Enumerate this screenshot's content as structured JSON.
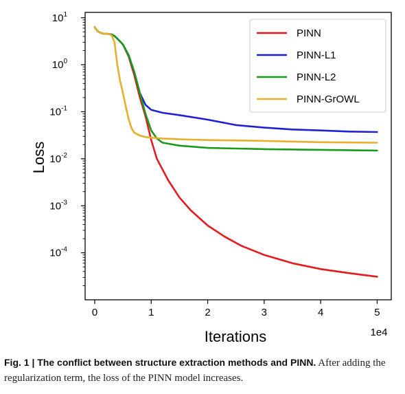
{
  "chart_data": {
    "type": "line",
    "title": "",
    "xlabel": "Iterations",
    "ylabel": "Loss",
    "x_multiplier_label": "1e4",
    "x_ticks": [
      "0",
      "1",
      "2",
      "3",
      "4",
      "5"
    ],
    "x_tick_values": [
      0,
      1,
      2,
      3,
      4,
      5
    ],
    "y_scale": "log",
    "y_ticks": [
      {
        "base": "10",
        "exp": "1",
        "value": 10
      },
      {
        "base": "10",
        "exp": "0",
        "value": 1
      },
      {
        "base": "10",
        "exp": "-1",
        "value": 0.1
      },
      {
        "base": "10",
        "exp": "-2",
        "value": 0.01
      },
      {
        "base": "10",
        "exp": "-3",
        "value": 0.001
      },
      {
        "base": "10",
        "exp": "-4",
        "value": 0.0001
      }
    ],
    "xlim": [
      -0.17,
      5.25
    ],
    "ylim": [
      1e-05,
      13
    ],
    "grid": false,
    "legend_position": "top-right",
    "series": [
      {
        "name": "PINN",
        "color": "#e41a1c",
        "x": [
          0,
          0.05,
          0.1,
          0.15,
          0.2,
          0.25,
          0.3,
          0.35,
          0.4,
          0.5,
          0.6,
          0.7,
          0.8,
          0.9,
          1.0,
          1.1,
          1.3,
          1.5,
          1.7,
          2.0,
          2.3,
          2.6,
          3.0,
          3.5,
          4.0,
          4.5,
          5.0
        ],
        "y": [
          6.3,
          5.2,
          4.8,
          4.6,
          4.6,
          4.5,
          4.4,
          4.1,
          3.6,
          2.7,
          1.5,
          0.6,
          0.2,
          0.08,
          0.025,
          0.01,
          0.0035,
          0.0015,
          0.0008,
          0.00038,
          0.00022,
          0.00014,
          9e-05,
          6e-05,
          4.5e-05,
          3.7e-05,
          3.1e-05
        ]
      },
      {
        "name": "PINN-L1",
        "color": "#1f1fd6",
        "x": [
          0,
          0.05,
          0.1,
          0.15,
          0.2,
          0.25,
          0.3,
          0.35,
          0.4,
          0.5,
          0.6,
          0.7,
          0.8,
          0.9,
          1.0,
          1.2,
          1.5,
          2.0,
          2.5,
          3.0,
          3.5,
          4.0,
          4.5,
          5.0
        ],
        "y": [
          6.3,
          5.2,
          4.8,
          4.6,
          4.6,
          4.5,
          4.4,
          4.1,
          3.6,
          2.7,
          1.6,
          0.7,
          0.25,
          0.14,
          0.11,
          0.095,
          0.085,
          0.068,
          0.052,
          0.046,
          0.042,
          0.04,
          0.038,
          0.037
        ]
      },
      {
        "name": "PINN-L2",
        "color": "#1a9a1a",
        "x": [
          0,
          0.05,
          0.1,
          0.15,
          0.2,
          0.25,
          0.3,
          0.35,
          0.4,
          0.5,
          0.6,
          0.7,
          0.8,
          0.9,
          1.0,
          1.1,
          1.2,
          1.5,
          2.0,
          2.5,
          3.0,
          4.0,
          5.0
        ],
        "y": [
          6.3,
          5.2,
          4.8,
          4.6,
          4.6,
          4.5,
          4.4,
          4.1,
          3.6,
          2.7,
          1.6,
          0.7,
          0.25,
          0.09,
          0.04,
          0.027,
          0.022,
          0.019,
          0.017,
          0.0165,
          0.016,
          0.0155,
          0.015
        ]
      },
      {
        "name": "PINN-GrOWL",
        "color": "#e6b02a",
        "x": [
          0,
          0.05,
          0.1,
          0.15,
          0.2,
          0.25,
          0.3,
          0.35,
          0.4,
          0.45,
          0.5,
          0.55,
          0.6,
          0.65,
          0.7,
          0.8,
          0.9,
          1.0,
          1.2,
          1.5,
          2.0,
          3.0,
          4.0,
          5.0
        ],
        "y": [
          6.3,
          5.2,
          4.8,
          4.6,
          4.6,
          4.5,
          4.2,
          3.0,
          1.0,
          0.45,
          0.25,
          0.13,
          0.07,
          0.045,
          0.036,
          0.031,
          0.029,
          0.028,
          0.027,
          0.026,
          0.025,
          0.024,
          0.0225,
          0.022
        ]
      }
    ]
  },
  "caption": {
    "label": "Fig. 1 | The conflict between structure extraction methods and PINN.",
    "text": " After adding the regularization term, the loss of the PINN model increases."
  }
}
